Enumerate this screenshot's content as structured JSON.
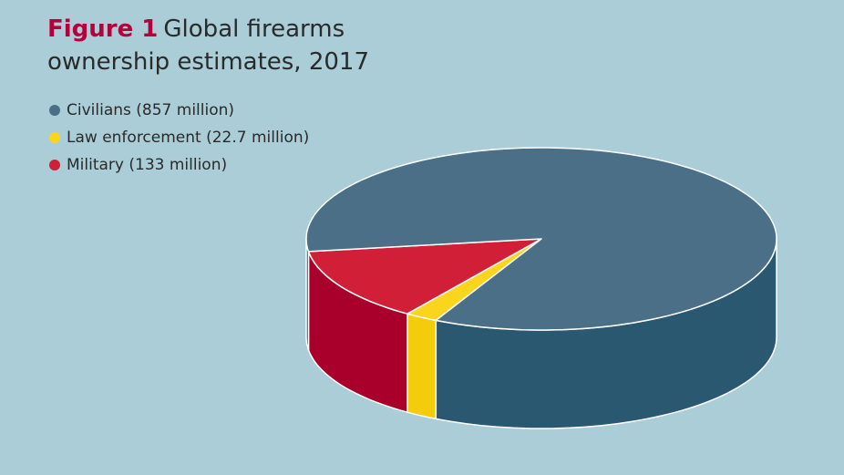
{
  "chart_data": {
    "type": "pie3d",
    "figure_label": "Figure 1",
    "title": "Global firearms ownership estimates, 2017",
    "categories": [
      "Civilians (857 million)",
      "Law enforcement (22.7 million)",
      "Military (133 million)"
    ],
    "values": [
      857,
      22.7,
      133
    ],
    "colors": [
      "#4a6f87",
      "#fad51d",
      "#d01f36"
    ],
    "side_colors": [
      "#2b5871",
      "#f3cd0b",
      "#a9002b"
    ]
  }
}
